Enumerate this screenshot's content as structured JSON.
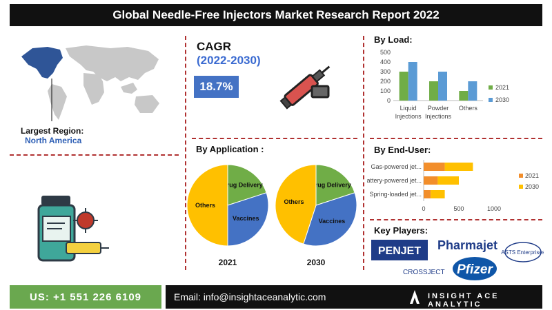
{
  "title": "Global Needle-Free Injectors Market Research Report 2022",
  "region": {
    "label": "Largest Region:",
    "value": "North America"
  },
  "cagr": {
    "label": "CAGR",
    "period": "(2022-2030)",
    "value": "18.7%"
  },
  "sections": {
    "by_load": "By Load:",
    "by_application": "By Application :",
    "by_end_user": "By End-User:",
    "key_players": "Key Players:"
  },
  "key_players": [
    "PENJET",
    "Pharmajet",
    "ASTS Enterprises",
    "CROSSJECT",
    "Pfizer"
  ],
  "footer": {
    "phone": "US: +1 551 226 6109",
    "email": "Email: info@insightaceanalytic.com",
    "brand": "INSIGHT ACE ANALYTIC"
  },
  "colors": {
    "y2021": "#70ad47",
    "y2030": "#5b9bd5",
    "bar2021": "#f28e2b",
    "bar2030": "#ffc000",
    "others": "#ffc000",
    "drug": "#70ad47",
    "vaccines": "#4472c4"
  },
  "chart_data": [
    {
      "type": "bar",
      "title": "By Load:",
      "categories": [
        [
          "Liquid",
          "Injections"
        ],
        [
          "Powder",
          "Injections"
        ],
        [
          "Others"
        ]
      ],
      "series": [
        {
          "name": "2021",
          "values": [
            300,
            200,
            100
          ]
        },
        {
          "name": "2030",
          "values": [
            400,
            300,
            200
          ]
        }
      ],
      "yticks": [
        0,
        100,
        200,
        300,
        400,
        500
      ],
      "ylim": [
        0,
        500
      ],
      "legend": "right"
    },
    {
      "type": "pie",
      "title": "2021",
      "slices": [
        {
          "label": "Drug Delivery",
          "value": 20
        },
        {
          "label": "Vaccines",
          "value": 30
        },
        {
          "label": "Others",
          "value": 50
        }
      ]
    },
    {
      "type": "pie",
      "title": "2030",
      "slices": [
        {
          "label": "Drug Delivery",
          "value": 20
        },
        {
          "label": "Vaccines",
          "value": 35
        },
        {
          "label": "Others",
          "value": 45
        }
      ]
    },
    {
      "type": "bar",
      "orientation": "horizontal",
      "stacked": true,
      "title": "By End-User:",
      "categories": [
        "Gas-powered jet...",
        "Battery-powered jet...",
        "Spring-loaded jet..."
      ],
      "series": [
        {
          "name": "2021",
          "values": [
            300,
            200,
            100
          ]
        },
        {
          "name": "2030",
          "values": [
            400,
            300,
            200
          ]
        }
      ],
      "xticks": [
        0,
        500,
        1000
      ],
      "xlim": [
        0,
        1000
      ],
      "legend": "right"
    }
  ]
}
